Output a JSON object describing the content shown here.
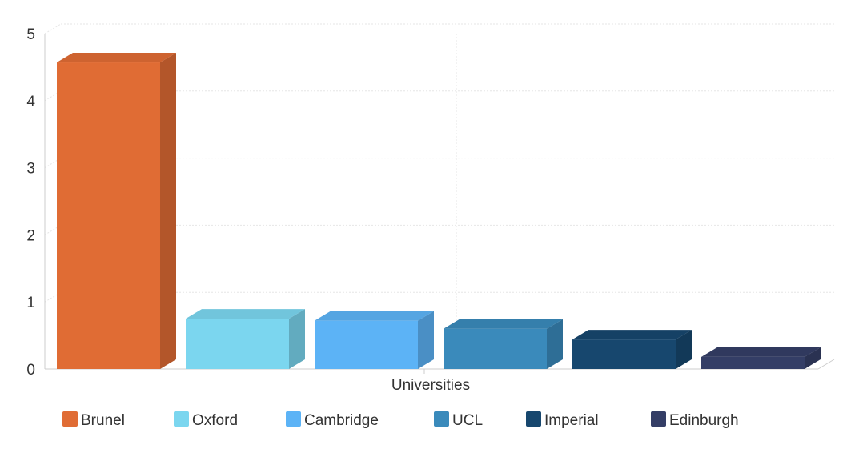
{
  "chart_data": {
    "type": "bar",
    "three_d": true,
    "xlabel": "Universities",
    "ylabel": "",
    "ylim": [
      0,
      5
    ],
    "yticks": [
      0,
      1,
      2,
      3,
      4,
      5
    ],
    "grid": true,
    "legend_position": "bottom",
    "categories": [
      "Universities"
    ],
    "series": [
      {
        "name": "Brunel",
        "values": [
          4.57
        ],
        "color": "#E06C34"
      },
      {
        "name": "Oxford",
        "values": [
          0.75
        ],
        "color": "#7BD6EF"
      },
      {
        "name": "Cambridge",
        "values": [
          0.72
        ],
        "color": "#5CB3F6"
      },
      {
        "name": "UCL",
        "values": [
          0.6
        ],
        "color": "#3A8ABB"
      },
      {
        "name": "Imperial",
        "values": [
          0.44
        ],
        "color": "#17476E"
      },
      {
        "name": "Edinburgh",
        "values": [
          0.18
        ],
        "color": "#343E66"
      }
    ]
  }
}
